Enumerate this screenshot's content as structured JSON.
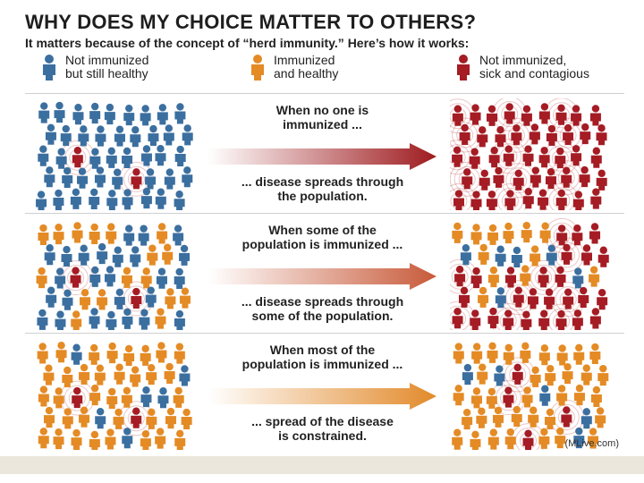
{
  "header": {
    "title": "WHY DOES MY CHOICE MATTER TO OTHERS?",
    "subtitle": "It matters because of the concept of “herd immunity.” Here’s how it works:"
  },
  "legend": [
    {
      "label": "Not immunized\nbut still healthy",
      "color": "#3b6fa0",
      "icon": "person-blue-icon"
    },
    {
      "label": "Immunized\nand healthy",
      "color": "#e48b25",
      "icon": "person-orange-icon"
    },
    {
      "label": "Not immunized,\nsick and contagious",
      "color": "#a51c24",
      "icon": "person-red-icon"
    }
  ],
  "colors": {
    "blue": "#3b6fa0",
    "orange": "#e48b25",
    "red": "#a51c24",
    "ring": "#c25b5b"
  },
  "scenarios": [
    {
      "caption_top": "When no one is\nimmunized ...",
      "caption_bottom": "... disease spreads through\nthe population.",
      "arrow_color": "#9e1b1f",
      "before": {
        "blue": 43,
        "orange": 0,
        "red": 2
      },
      "after": {
        "blue": 0,
        "orange": 0,
        "red": 45
      }
    },
    {
      "caption_top": "When some of the\npopulation is immunized ...",
      "caption_bottom": "... disease spreads through\nsome of the population.",
      "arrow_color": "#c85a3a",
      "before": {
        "blue": 26,
        "orange": 17,
        "red": 2
      },
      "after": {
        "blue": 6,
        "orange": 12,
        "red": 27
      }
    },
    {
      "caption_top": "When most of the\npopulation is immunized ...",
      "caption_bottom": "... spread of the disease\nis constrained.",
      "arrow_color": "#e28a2b",
      "before": {
        "blue": 6,
        "orange": 37,
        "red": 2
      },
      "after": {
        "blue": 5,
        "orange": 36,
        "red": 4
      }
    }
  ],
  "credit": "(MLive.com)"
}
